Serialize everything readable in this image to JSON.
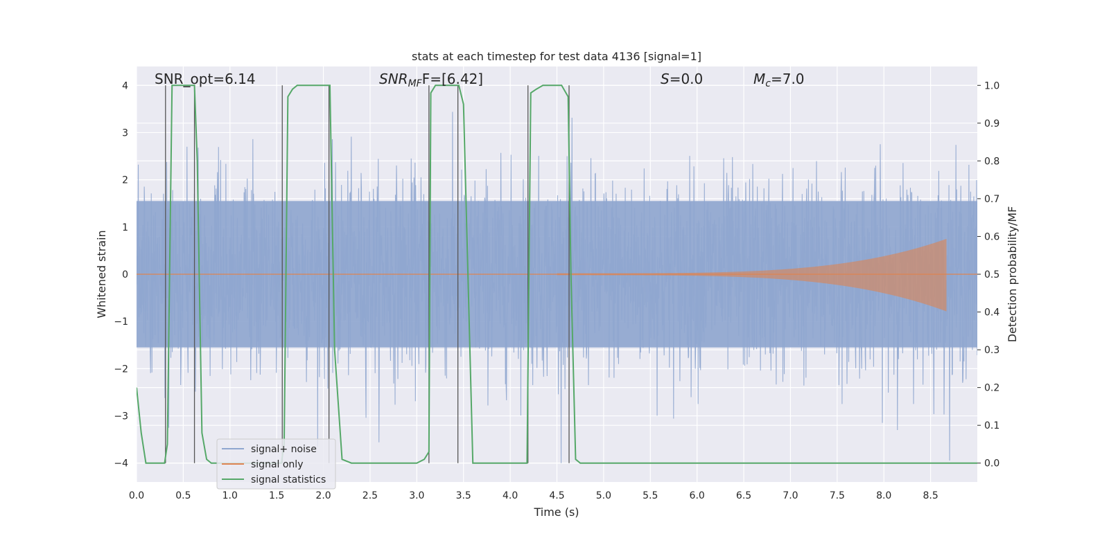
{
  "chart_data": {
    "type": "line",
    "title": "stats at each timestep for test data 4136 [signal=1]",
    "xlabel": "Time (s)",
    "ylabel": "Whitened strain",
    "y2label": "Detection probability/MF",
    "xlim": [
      0.0,
      9.0
    ],
    "ylim": [
      -4.4,
      4.4
    ],
    "y2lim": [
      -0.05,
      1.05
    ],
    "grid": true,
    "legend_position": "lower-left",
    "x_ticks": [
      "0.0",
      "0.5",
      "1.0",
      "1.5",
      "2.0",
      "2.5",
      "3.0",
      "3.5",
      "4.0",
      "4.5",
      "5.0",
      "5.5",
      "6.0",
      "6.5",
      "7.0",
      "7.5",
      "8.0",
      "8.5"
    ],
    "y_ticks": [
      "−4",
      "−3",
      "−2",
      "−1",
      "0",
      "1",
      "2",
      "3",
      "4"
    ],
    "y2_ticks": [
      "0.0",
      "0.1",
      "0.2",
      "0.3",
      "0.4",
      "0.5",
      "0.6",
      "0.7",
      "0.8",
      "0.9",
      "1.0"
    ],
    "annotations": {
      "snr_opt": "SNR_opt=6.14",
      "snr_mf_prefix": "SNR",
      "snr_mf_sub": "MF",
      "snr_mf_suffix": "F=[6.42]",
      "s_prefix": "S",
      "s_suffix": "=0.0",
      "mc_prefix": "M",
      "mc_sub": "c",
      "mc_suffix": "=7.0"
    },
    "series": [
      {
        "name": "signal+ noise",
        "color": "#8fa6cf",
        "description_values": "dense noise, amplitude mostly within ±2.5, peaks to ~±4",
        "envelope": {
          "typical": 1.8,
          "peak": 4.0
        }
      },
      {
        "name": "signal only",
        "color": "#dd8452",
        "chirp": {
          "start": 4.5,
          "end": 8.67,
          "amp_start": 0.02,
          "amp_end": 0.75
        }
      },
      {
        "name": "signal statistics",
        "color": "#55a868",
        "axis": "right",
        "x": [
          0.0,
          0.05,
          0.1,
          0.15,
          0.3,
          0.33,
          0.38,
          0.42,
          0.47,
          0.6,
          0.62,
          0.65,
          0.7,
          0.75,
          0.8,
          1.0,
          1.2,
          1.4,
          1.55,
          1.58,
          1.62,
          1.67,
          1.72,
          1.8,
          2.0,
          2.05,
          2.07,
          2.12,
          2.2,
          2.3,
          2.5,
          3.0,
          3.08,
          3.13,
          3.15,
          3.2,
          3.3,
          3.45,
          3.5,
          3.6,
          4.0,
          4.18,
          4.22,
          4.28,
          4.35,
          4.5,
          4.55,
          4.62,
          4.65,
          4.7,
          4.75,
          5.0,
          6.0,
          7.0,
          8.0,
          9.0
        ],
        "y": [
          0.2,
          0.08,
          0.0,
          0.0,
          0.0,
          0.05,
          1.0,
          1.0,
          1.0,
          1.0,
          1.0,
          0.8,
          0.08,
          0.01,
          0.0,
          0.0,
          0.0,
          0.0,
          0.0,
          0.05,
          0.97,
          0.99,
          1.0,
          1.0,
          1.0,
          1.0,
          1.0,
          0.3,
          0.01,
          0.0,
          0.0,
          0.0,
          0.01,
          0.03,
          0.98,
          1.0,
          1.0,
          1.0,
          0.95,
          0.0,
          0.0,
          0.0,
          0.98,
          0.99,
          1.0,
          1.0,
          1.0,
          0.97,
          0.5,
          0.01,
          0.0,
          0.0,
          0.0,
          0.0,
          0.0,
          0.0
        ]
      }
    ],
    "event_lines": {
      "color": "#555555",
      "x": [
        0.31,
        0.62,
        1.56,
        2.06,
        3.13,
        3.44,
        4.19,
        4.63
      ]
    }
  }
}
